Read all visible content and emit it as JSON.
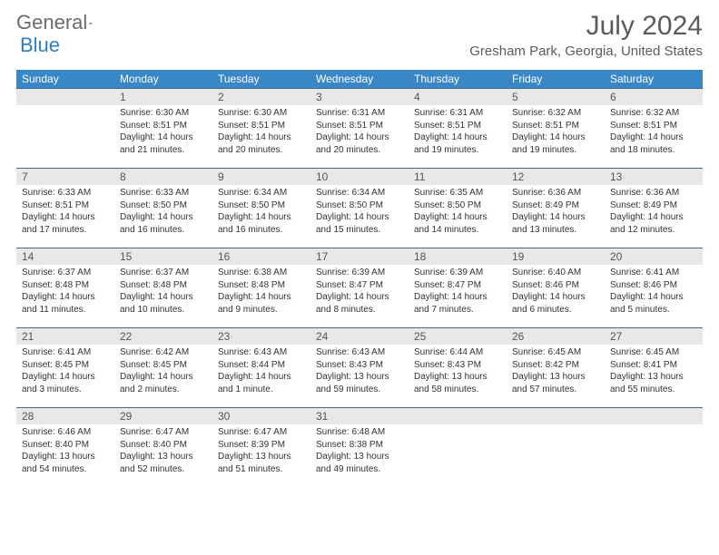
{
  "brand": {
    "part1": "General",
    "part2": "Blue"
  },
  "header": {
    "month_title": "July 2024",
    "location": "Gresham Park, Georgia, United States"
  },
  "colors": {
    "header_bg": "#3a87c8",
    "header_text": "#ffffff",
    "daynum_bg": "#e8e8e8",
    "border": "#3a6a8f",
    "brand_gray": "#6b6b6b",
    "brand_blue": "#2f7fc0"
  },
  "weekdays": [
    "Sunday",
    "Monday",
    "Tuesday",
    "Wednesday",
    "Thursday",
    "Friday",
    "Saturday"
  ],
  "weeks": [
    [
      {
        "blank": true
      },
      {
        "n": "1",
        "sunrise": "Sunrise: 6:30 AM",
        "sunset": "Sunset: 8:51 PM",
        "dl1": "Daylight: 14 hours",
        "dl2": "and 21 minutes."
      },
      {
        "n": "2",
        "sunrise": "Sunrise: 6:30 AM",
        "sunset": "Sunset: 8:51 PM",
        "dl1": "Daylight: 14 hours",
        "dl2": "and 20 minutes."
      },
      {
        "n": "3",
        "sunrise": "Sunrise: 6:31 AM",
        "sunset": "Sunset: 8:51 PM",
        "dl1": "Daylight: 14 hours",
        "dl2": "and 20 minutes."
      },
      {
        "n": "4",
        "sunrise": "Sunrise: 6:31 AM",
        "sunset": "Sunset: 8:51 PM",
        "dl1": "Daylight: 14 hours",
        "dl2": "and 19 minutes."
      },
      {
        "n": "5",
        "sunrise": "Sunrise: 6:32 AM",
        "sunset": "Sunset: 8:51 PM",
        "dl1": "Daylight: 14 hours",
        "dl2": "and 19 minutes."
      },
      {
        "n": "6",
        "sunrise": "Sunrise: 6:32 AM",
        "sunset": "Sunset: 8:51 PM",
        "dl1": "Daylight: 14 hours",
        "dl2": "and 18 minutes."
      }
    ],
    [
      {
        "n": "7",
        "sunrise": "Sunrise: 6:33 AM",
        "sunset": "Sunset: 8:51 PM",
        "dl1": "Daylight: 14 hours",
        "dl2": "and 17 minutes."
      },
      {
        "n": "8",
        "sunrise": "Sunrise: 6:33 AM",
        "sunset": "Sunset: 8:50 PM",
        "dl1": "Daylight: 14 hours",
        "dl2": "and 16 minutes."
      },
      {
        "n": "9",
        "sunrise": "Sunrise: 6:34 AM",
        "sunset": "Sunset: 8:50 PM",
        "dl1": "Daylight: 14 hours",
        "dl2": "and 16 minutes."
      },
      {
        "n": "10",
        "sunrise": "Sunrise: 6:34 AM",
        "sunset": "Sunset: 8:50 PM",
        "dl1": "Daylight: 14 hours",
        "dl2": "and 15 minutes."
      },
      {
        "n": "11",
        "sunrise": "Sunrise: 6:35 AM",
        "sunset": "Sunset: 8:50 PM",
        "dl1": "Daylight: 14 hours",
        "dl2": "and 14 minutes."
      },
      {
        "n": "12",
        "sunrise": "Sunrise: 6:36 AM",
        "sunset": "Sunset: 8:49 PM",
        "dl1": "Daylight: 14 hours",
        "dl2": "and 13 minutes."
      },
      {
        "n": "13",
        "sunrise": "Sunrise: 6:36 AM",
        "sunset": "Sunset: 8:49 PM",
        "dl1": "Daylight: 14 hours",
        "dl2": "and 12 minutes."
      }
    ],
    [
      {
        "n": "14",
        "sunrise": "Sunrise: 6:37 AM",
        "sunset": "Sunset: 8:48 PM",
        "dl1": "Daylight: 14 hours",
        "dl2": "and 11 minutes."
      },
      {
        "n": "15",
        "sunrise": "Sunrise: 6:37 AM",
        "sunset": "Sunset: 8:48 PM",
        "dl1": "Daylight: 14 hours",
        "dl2": "and 10 minutes."
      },
      {
        "n": "16",
        "sunrise": "Sunrise: 6:38 AM",
        "sunset": "Sunset: 8:48 PM",
        "dl1": "Daylight: 14 hours",
        "dl2": "and 9 minutes."
      },
      {
        "n": "17",
        "sunrise": "Sunrise: 6:39 AM",
        "sunset": "Sunset: 8:47 PM",
        "dl1": "Daylight: 14 hours",
        "dl2": "and 8 minutes."
      },
      {
        "n": "18",
        "sunrise": "Sunrise: 6:39 AM",
        "sunset": "Sunset: 8:47 PM",
        "dl1": "Daylight: 14 hours",
        "dl2": "and 7 minutes."
      },
      {
        "n": "19",
        "sunrise": "Sunrise: 6:40 AM",
        "sunset": "Sunset: 8:46 PM",
        "dl1": "Daylight: 14 hours",
        "dl2": "and 6 minutes."
      },
      {
        "n": "20",
        "sunrise": "Sunrise: 6:41 AM",
        "sunset": "Sunset: 8:46 PM",
        "dl1": "Daylight: 14 hours",
        "dl2": "and 5 minutes."
      }
    ],
    [
      {
        "n": "21",
        "sunrise": "Sunrise: 6:41 AM",
        "sunset": "Sunset: 8:45 PM",
        "dl1": "Daylight: 14 hours",
        "dl2": "and 3 minutes."
      },
      {
        "n": "22",
        "sunrise": "Sunrise: 6:42 AM",
        "sunset": "Sunset: 8:45 PM",
        "dl1": "Daylight: 14 hours",
        "dl2": "and 2 minutes."
      },
      {
        "n": "23",
        "sunrise": "Sunrise: 6:43 AM",
        "sunset": "Sunset: 8:44 PM",
        "dl1": "Daylight: 14 hours",
        "dl2": "and 1 minute."
      },
      {
        "n": "24",
        "sunrise": "Sunrise: 6:43 AM",
        "sunset": "Sunset: 8:43 PM",
        "dl1": "Daylight: 13 hours",
        "dl2": "and 59 minutes."
      },
      {
        "n": "25",
        "sunrise": "Sunrise: 6:44 AM",
        "sunset": "Sunset: 8:43 PM",
        "dl1": "Daylight: 13 hours",
        "dl2": "and 58 minutes."
      },
      {
        "n": "26",
        "sunrise": "Sunrise: 6:45 AM",
        "sunset": "Sunset: 8:42 PM",
        "dl1": "Daylight: 13 hours",
        "dl2": "and 57 minutes."
      },
      {
        "n": "27",
        "sunrise": "Sunrise: 6:45 AM",
        "sunset": "Sunset: 8:41 PM",
        "dl1": "Daylight: 13 hours",
        "dl2": "and 55 minutes."
      }
    ],
    [
      {
        "n": "28",
        "sunrise": "Sunrise: 6:46 AM",
        "sunset": "Sunset: 8:40 PM",
        "dl1": "Daylight: 13 hours",
        "dl2": "and 54 minutes."
      },
      {
        "n": "29",
        "sunrise": "Sunrise: 6:47 AM",
        "sunset": "Sunset: 8:40 PM",
        "dl1": "Daylight: 13 hours",
        "dl2": "and 52 minutes."
      },
      {
        "n": "30",
        "sunrise": "Sunrise: 6:47 AM",
        "sunset": "Sunset: 8:39 PM",
        "dl1": "Daylight: 13 hours",
        "dl2": "and 51 minutes."
      },
      {
        "n": "31",
        "sunrise": "Sunrise: 6:48 AM",
        "sunset": "Sunset: 8:38 PM",
        "dl1": "Daylight: 13 hours",
        "dl2": "and 49 minutes."
      },
      {
        "blank": true
      },
      {
        "blank": true
      },
      {
        "blank": true
      }
    ]
  ]
}
